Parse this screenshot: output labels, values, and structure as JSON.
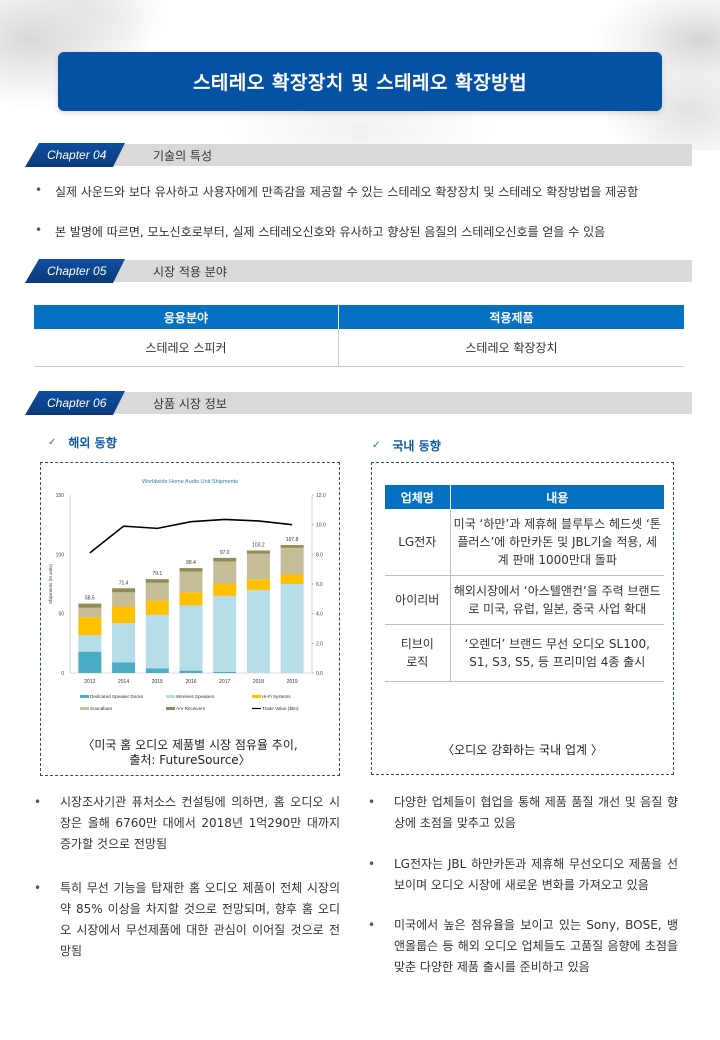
{
  "title": "스테레오 확장장치 및 스테레오 확장방법",
  "chapters": [
    {
      "tag": "Chapter 04",
      "label": "기술의 특성"
    },
    {
      "tag": "Chapter 05",
      "label": "시장 적용 분야"
    },
    {
      "tag": "Chapter 06",
      "label": "상품 시장 정보"
    }
  ],
  "tech_bullets": [
    "실제 사운드와 보다 유사하고 사용자에게 만족감을 제공할 수 있는 스테레오 확장장치 및 스테레오 확장방법을 제공함",
    "본 발명에 따르면, 모노신호로부터, 실제 스테레오신호와 유사하고 향상된 음질의 스테레오신호를 얻을 수 있음"
  ],
  "bullet_symbol": "•",
  "application_table": {
    "headers": [
      "응용분야",
      "적용제품"
    ],
    "rows": [
      [
        "스테레오 스피커",
        "스테레오 확장장치"
      ]
    ]
  },
  "overseas": {
    "heading": "해외 동향",
    "check": "✓",
    "caption_line1": "〈미국 홈 오디오 제품별 시장 점유율 추이,",
    "caption_line2": "출처: FutureSource〉",
    "bullets": [
      "시장조사기관 퓨처소스 컨설팅에 의하면, 홈 오디오 시장은 올해 6760만 대에서 2018년 1억290만 대까지 증가할 것으로 전망됨",
      "특히 무선 기능을 탑재한 홈 오디오 제품이 전체 시장의 약 85% 이상을 차지할 것으로 전망되며, 향후 홈 오디오 시장에서 무선제품에 대한 관심이 이어질 것으로 전망됨"
    ]
  },
  "domestic": {
    "heading": "국내 동향",
    "check": "✓",
    "table": {
      "headers": [
        "업체명",
        "내용"
      ],
      "rows": [
        [
          "LG전자",
          "미국 ‘하만’과 제휴해 블루투스 헤드셋 ‘톤플러스’에 하만카돈 및 JBL기술 적용, 세계 판매 1000만대 돌파"
        ],
        [
          "아이리버",
          "해외시장에서 ‘아스텔앤컨’을 주력 브랜드로 미국, 유럽, 일본, 중국 사업 확대"
        ],
        [
          "티브이 로직",
          "‘오렌더’ 브랜드 무선 오디오 SL100, S1, S3, S5, 등 프리미엄 4종 출시"
        ]
      ]
    },
    "caption": "〈오디오 강화하는 국내 업계 〉",
    "bullets": [
      "다양한 업체들이 협업을 통해 제품 품질 개선 및 음질 향상에 초점을 맞추고 있음",
      "LG전자는 JBL 하만카돈과 제휴해 무선오디오 제품을 선보이며 오디오 시장에 새로운 변화를 가져오고 있음",
      "미국에서 높은 점유율을 보이고 있는 Sony, BOSE, 뱅앤올룹슨 등 해외 오디오 업체들도 고품질 음향에 초점을 맞춘 다양한 제품 출시를 준비하고 있음"
    ]
  },
  "colors": {
    "banner": "#0551a5",
    "table_header": "#0670c2",
    "chapter_tag": "#0e4fa0",
    "chapter_bar": "#d9d9d9",
    "subheading": "#0f5aa8"
  },
  "chart_data": {
    "type": "bar",
    "stacked": true,
    "title": "Worldwide Home Audio Unit Shipments",
    "ylabel": "Shipments (M units)",
    "y2label": "Trade Value ($bn)",
    "ylim": [
      0,
      150
    ],
    "y2lim": [
      0,
      12
    ],
    "yticks": [
      0,
      50,
      100,
      150
    ],
    "y2ticks": [
      "0.0",
      "2.0",
      "4.0",
      "6.0",
      "8.0",
      "10.0",
      "12.0"
    ],
    "categories": [
      "2013",
      "2014",
      "2015",
      "2016",
      "2017",
      "2018",
      "2019"
    ],
    "totals": [
      "58.5",
      "71.4",
      "79.1",
      "88.4",
      "97.0",
      "103.2",
      "107.8"
    ],
    "series": [
      {
        "name": "Dedicated Speaker Docks",
        "color": "#4bacc6",
        "values": [
          18,
          9,
          4,
          2,
          1,
          0,
          0
        ]
      },
      {
        "name": "Wireless Speakers",
        "color": "#b7dde8",
        "values": [
          14,
          33,
          45,
          55,
          64,
          70,
          75
        ]
      },
      {
        "name": "Hi-Fi Systems",
        "color": "#ffc000",
        "values": [
          15,
          14,
          12,
          11,
          10,
          9,
          8
        ]
      },
      {
        "name": "Soundbars",
        "color": "#c4bd97",
        "values": [
          8,
          12,
          15,
          17.5,
          19,
          21.5,
          22.5
        ]
      },
      {
        "name": "A/V Receivers",
        "color": "#948a54",
        "values": [
          3.5,
          3.4,
          3.1,
          2.9,
          3.0,
          2.7,
          2.3
        ]
      }
    ],
    "line": {
      "name": "Trade Value ($bn)",
      "color": "#000000",
      "axis": "right",
      "values": [
        8.1,
        9.9,
        9.75,
        10.2,
        10.35,
        10.25,
        10.0
      ]
    },
    "legend": [
      "Dedicated Speaker Docks",
      "Wireless Speakers",
      "Hi-Fi Systems",
      "Soundbars",
      "A/V Receivers",
      "Trade Value ($bn)"
    ],
    "legend_position": "bottom",
    "grid": false
  }
}
